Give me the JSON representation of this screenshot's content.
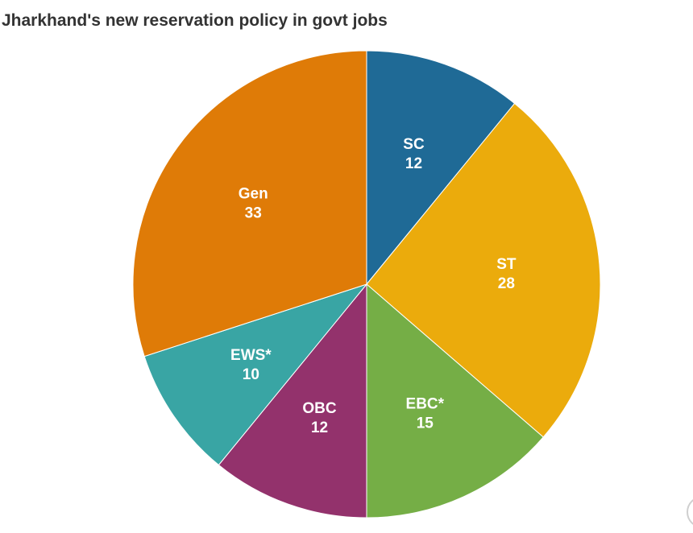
{
  "chart_data": {
    "type": "pie",
    "title": "Jharkhand's new reservation policy in govt jobs",
    "slices": [
      {
        "label": "SC",
        "value": 12,
        "color": "#1f6a96"
      },
      {
        "label": "ST",
        "value": 28,
        "color": "#ebab0c"
      },
      {
        "label": "EBC*",
        "value": 15,
        "color": "#75ae46"
      },
      {
        "label": "OBC",
        "value": 12,
        "color": "#93326c"
      },
      {
        "label": "EWS*",
        "value": 10,
        "color": "#39a5a4"
      },
      {
        "label": "Gen",
        "value": 33,
        "color": "#df7b07"
      }
    ]
  }
}
